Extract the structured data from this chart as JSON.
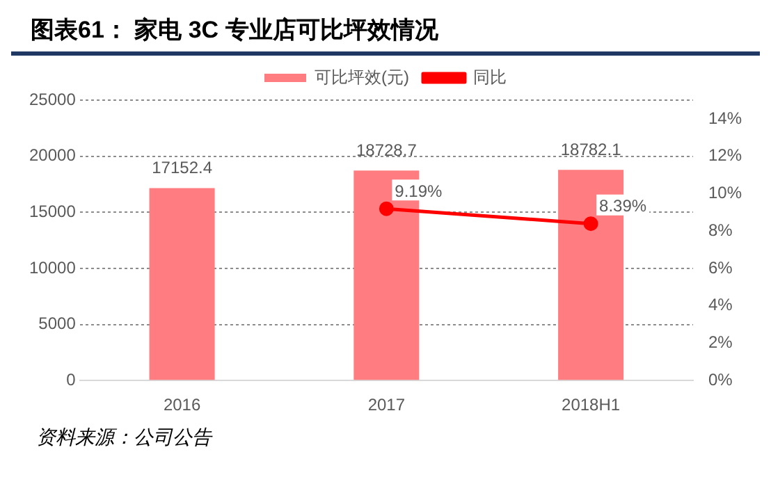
{
  "chart_data": {
    "type": "bar",
    "title": "图表61：  家电 3C 专业店可比坪效情况",
    "categories": [
      "2016",
      "2017",
      "2018H1"
    ],
    "series": [
      {
        "name": "可比坪效(元)",
        "color": "#ff7c80",
        "values": [
          17152.4,
          18728.7,
          18782.1
        ]
      },
      {
        "name": "同比",
        "type": "line",
        "axis": "y2",
        "color": "#ff0000",
        "values": [
          null,
          9.19,
          8.39
        ],
        "value_labels": [
          null,
          "9.19%",
          "8.39%"
        ]
      }
    ],
    "ylim": [
      0,
      25000
    ],
    "yticks": [
      0,
      5000,
      10000,
      15000,
      20000,
      25000
    ],
    "y2lim": [
      0,
      15
    ],
    "y2ticks": [
      {
        "value": 0,
        "label": "0%"
      },
      {
        "value": 2,
        "label": "2%"
      },
      {
        "value": 4,
        "label": "4%"
      },
      {
        "value": 6,
        "label": "6%"
      },
      {
        "value": 8,
        "label": "8%"
      },
      {
        "value": 10,
        "label": "10%"
      },
      {
        "value": 12,
        "label": "12%"
      },
      {
        "value": 14,
        "label": "14%"
      }
    ],
    "data_labels": true,
    "grid": "y",
    "legend": "top",
    "marker": "circle",
    "annotations": [
      "资料来源：公司公告"
    ]
  }
}
